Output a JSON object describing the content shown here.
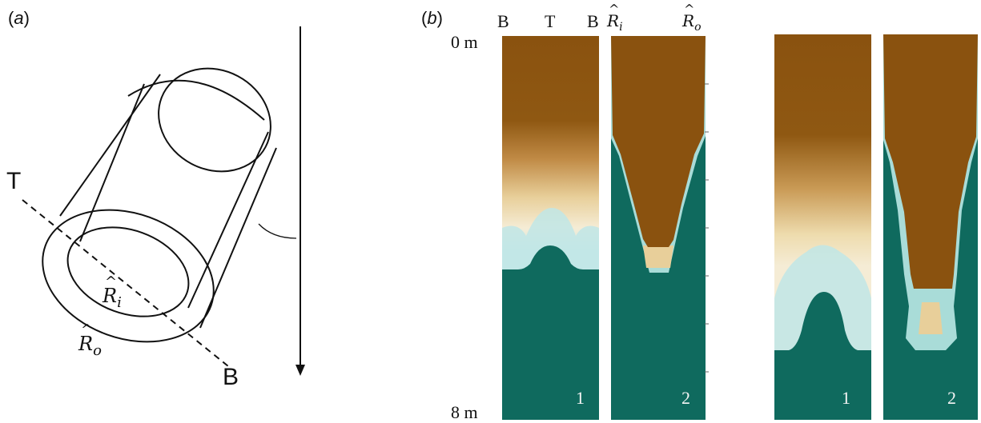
{
  "panel_a": {
    "label_open": "(",
    "label_letter": "a",
    "label_close": ")",
    "label_T": "T",
    "label_B": "B",
    "label_Ri_letter": "R",
    "label_Ri_sub": "i",
    "label_Ro_letter": "R",
    "label_Ro_sub": "o"
  },
  "panel_b": {
    "label_open": "(",
    "label_letter": "b",
    "label_close": ")",
    "depth_top": "0 m",
    "depth_bottom": "8 m",
    "column_labels": [
      "B",
      "T",
      "B"
    ],
    "radius_inner_letter": "R",
    "radius_inner_sub": "i",
    "radius_outer_letter": "R",
    "radius_outer_sub": "o",
    "strip_indices": [
      "1",
      "2",
      "1",
      "2"
    ]
  },
  "colors": {
    "brown": "#8a520f",
    "tan": "#e8cf9a",
    "cream": "#f5ecd5",
    "cyan_light": "#bfe6e6",
    "teal": "#0f6a5e"
  }
}
